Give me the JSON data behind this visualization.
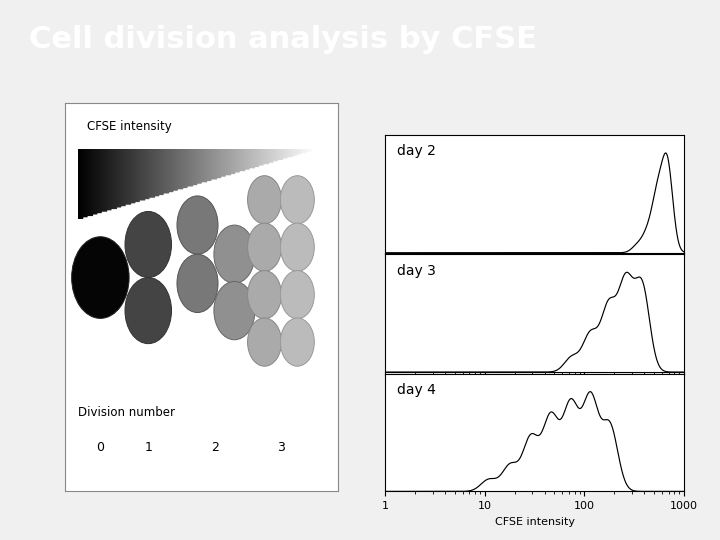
{
  "title": "Cell division analysis by CFSE",
  "title_bg_color": "#3d9fd3",
  "title_text_color": "#ffffff",
  "title_fontsize": 22,
  "days": [
    "day 2",
    "day 3",
    "day 4"
  ],
  "xlabel_right": "CFSE intensity",
  "cfse_label": "CFSE intensity",
  "division_label": "Division number",
  "division_ticks": [
    "0",
    "1",
    "2",
    "3"
  ]
}
